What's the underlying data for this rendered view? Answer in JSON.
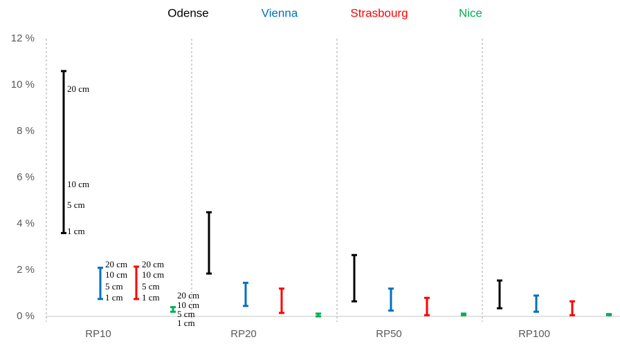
{
  "chart_data": {
    "type": "range",
    "categories": [
      "RP10",
      "RP20",
      "RP50",
      "RP100"
    ],
    "ylim": [
      0,
      12
    ],
    "yticks": [
      {
        "value": 0,
        "label": "0 %"
      },
      {
        "value": 2,
        "label": "2 %"
      },
      {
        "value": 4,
        "label": "4 %"
      },
      {
        "value": 6,
        "label": "6 %"
      },
      {
        "value": 8,
        "label": "8 %"
      },
      {
        "value": 10,
        "label": "10 %"
      },
      {
        "value": 12,
        "label": "12 %"
      }
    ],
    "series": [
      {
        "name": "Odense",
        "color": "#000000",
        "low": [
          3.6,
          1.85,
          0.65,
          0.35
        ],
        "high": [
          10.6,
          4.5,
          2.65,
          1.55
        ],
        "labels": [
          "20 cm",
          "10 cm",
          "5 cm",
          "1 cm"
        ]
      },
      {
        "name": "Vienna",
        "color": "#0070c0",
        "low": [
          0.75,
          0.45,
          0.25,
          0.2
        ],
        "high": [
          2.1,
          1.45,
          1.2,
          0.9
        ],
        "labels": [
          "20 cm",
          "10 cm",
          "5 cm",
          "1 cm"
        ]
      },
      {
        "name": "Strasbourg",
        "color": "#ff0000",
        "low": [
          0.75,
          0.15,
          0.05,
          0.05
        ],
        "high": [
          2.15,
          1.2,
          0.8,
          0.65
        ],
        "labels": [
          "20 cm",
          "10 cm",
          "5 cm",
          "1 cm"
        ]
      },
      {
        "name": "Nice",
        "color": "#00b050",
        "low": [
          0.2,
          0.0,
          0.05,
          0.05
        ],
        "high": [
          0.4,
          0.12,
          0.12,
          0.1
        ],
        "labels": [
          "20 cm",
          "10 cm",
          "5 cm",
          "1 cm"
        ]
      }
    ]
  }
}
